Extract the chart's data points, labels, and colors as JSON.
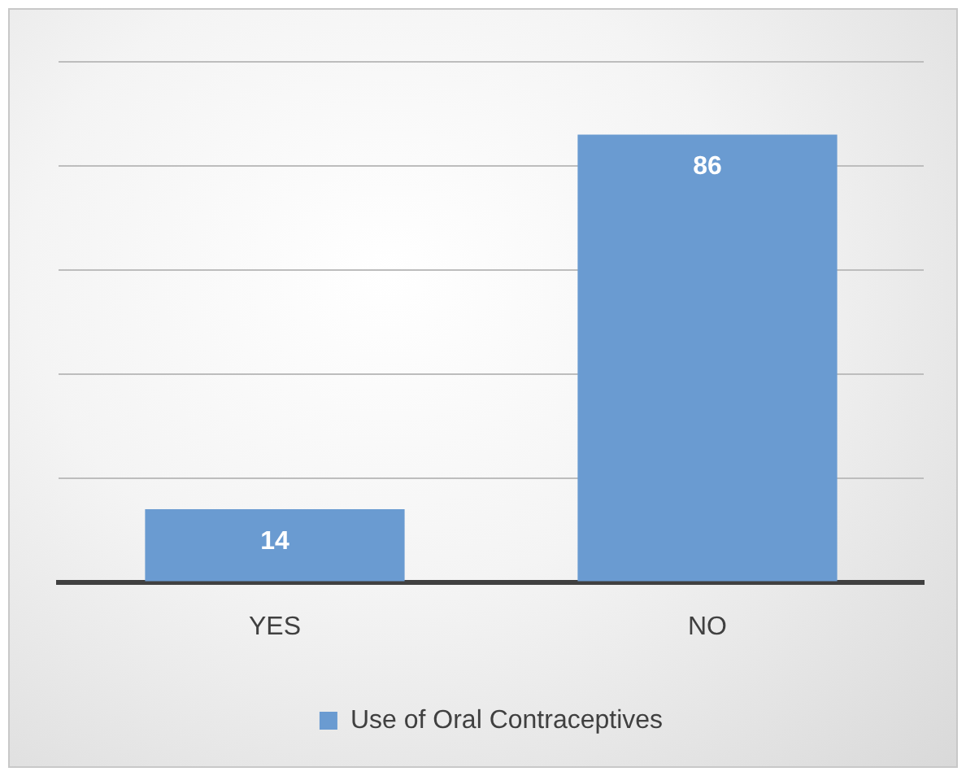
{
  "chart_data": {
    "type": "bar",
    "categories": [
      "YES",
      "NO"
    ],
    "series": [
      {
        "name": "Use of Oral Contraceptives",
        "color": "#6a9bd1",
        "values": [
          14,
          86
        ]
      }
    ],
    "ylim": [
      0,
      100
    ],
    "yticks": [
      {
        "value": 0,
        "label": null
      },
      {
        "value": 20,
        "label": null
      },
      {
        "value": 40,
        "label": null
      },
      {
        "value": 60,
        "label": null
      },
      {
        "value": 80,
        "label": null
      },
      {
        "value": 100,
        "label": null
      }
    ],
    "tick_labels": "x",
    "grid": "y",
    "legend": "bottom",
    "data_labels": true
  }
}
